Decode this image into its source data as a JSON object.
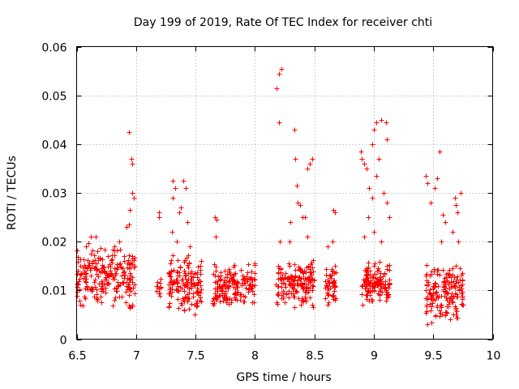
{
  "chart_data": {
    "type": "scatter",
    "title": "Day 199 of 2019, Rate Of TEC Index for receiver chti",
    "xlabel": "GPS time / hours",
    "ylabel": "ROTI / TECUs",
    "xlim": [
      6.5,
      10
    ],
    "ylim": [
      0,
      0.06
    ],
    "xticks": [
      6.5,
      7,
      7.5,
      8,
      8.5,
      9,
      9.5,
      10
    ],
    "xtick_labels": [
      "6.5",
      "7",
      "7.5",
      "8",
      "8.5",
      "9",
      "9.5",
      "10"
    ],
    "yticks": [
      0,
      0.01,
      0.02,
      0.03,
      0.04,
      0.05,
      0.06
    ],
    "ytick_labels": [
      "0",
      "0.01",
      "0.02",
      "0.03",
      "0.04",
      "0.05",
      "0.06"
    ],
    "grid": true,
    "marker": "plus",
    "series": [
      {
        "name": "ROTI",
        "color": "#ff0000",
        "clusters": [
          {
            "x_start": 6.5,
            "x_end": 6.99,
            "n": 230,
            "y_min": 0.006,
            "y_max": 0.02
          },
          {
            "x_start": 7.17,
            "x_end": 7.21,
            "n": 12,
            "y_min": 0.008,
            "y_max": 0.013
          },
          {
            "x_start": 7.27,
            "x_end": 7.55,
            "n": 150,
            "y_min": 0.005,
            "y_max": 0.018
          },
          {
            "x_start": 7.64,
            "x_end": 8.0,
            "n": 170,
            "y_min": 0.006,
            "y_max": 0.016
          },
          {
            "x_start": 8.17,
            "x_end": 8.5,
            "n": 170,
            "y_min": 0.006,
            "y_max": 0.017
          },
          {
            "x_start": 8.59,
            "x_end": 8.68,
            "n": 50,
            "y_min": 0.006,
            "y_max": 0.016
          },
          {
            "x_start": 8.89,
            "x_end": 9.14,
            "n": 140,
            "y_min": 0.007,
            "y_max": 0.016
          },
          {
            "x_start": 9.43,
            "x_end": 9.75,
            "n": 170,
            "y_min": 0.003,
            "y_max": 0.016
          }
        ],
        "outliers": [
          {
            "x": 6.58,
            "y": 0.019
          },
          {
            "x": 6.62,
            "y": 0.021
          },
          {
            "x": 6.66,
            "y": 0.021
          },
          {
            "x": 6.82,
            "y": 0.019
          },
          {
            "x": 6.86,
            "y": 0.02
          },
          {
            "x": 6.92,
            "y": 0.023
          },
          {
            "x": 6.94,
            "y": 0.0235
          },
          {
            "x": 6.95,
            "y": 0.0265
          },
          {
            "x": 6.94,
            "y": 0.0425
          },
          {
            "x": 6.96,
            "y": 0.037
          },
          {
            "x": 6.97,
            "y": 0.036
          },
          {
            "x": 6.97,
            "y": 0.03
          },
          {
            "x": 6.98,
            "y": 0.029
          },
          {
            "x": 7.19,
            "y": 0.026
          },
          {
            "x": 7.19,
            "y": 0.025
          },
          {
            "x": 7.3,
            "y": 0.022
          },
          {
            "x": 7.31,
            "y": 0.029
          },
          {
            "x": 7.31,
            "y": 0.0325
          },
          {
            "x": 7.33,
            "y": 0.031
          },
          {
            "x": 7.36,
            "y": 0.026
          },
          {
            "x": 7.38,
            "y": 0.027
          },
          {
            "x": 7.4,
            "y": 0.0325
          },
          {
            "x": 7.42,
            "y": 0.031
          },
          {
            "x": 7.43,
            "y": 0.024
          },
          {
            "x": 7.34,
            "y": 0.02
          },
          {
            "x": 7.45,
            "y": 0.019
          },
          {
            "x": 7.66,
            "y": 0.025
          },
          {
            "x": 7.68,
            "y": 0.0245
          },
          {
            "x": 7.67,
            "y": 0.021
          },
          {
            "x": 8.18,
            "y": 0.0515
          },
          {
            "x": 8.2,
            "y": 0.0545
          },
          {
            "x": 8.22,
            "y": 0.0555
          },
          {
            "x": 8.2,
            "y": 0.0445
          },
          {
            "x": 8.33,
            "y": 0.043
          },
          {
            "x": 8.34,
            "y": 0.037
          },
          {
            "x": 8.35,
            "y": 0.0315
          },
          {
            "x": 8.36,
            "y": 0.028
          },
          {
            "x": 8.38,
            "y": 0.0275
          },
          {
            "x": 8.44,
            "y": 0.035
          },
          {
            "x": 8.46,
            "y": 0.036
          },
          {
            "x": 8.48,
            "y": 0.037
          },
          {
            "x": 8.4,
            "y": 0.025
          },
          {
            "x": 8.42,
            "y": 0.025
          },
          {
            "x": 8.3,
            "y": 0.024
          },
          {
            "x": 8.44,
            "y": 0.021
          },
          {
            "x": 8.21,
            "y": 0.02
          },
          {
            "x": 8.29,
            "y": 0.02
          },
          {
            "x": 8.66,
            "y": 0.0265
          },
          {
            "x": 8.67,
            "y": 0.026
          },
          {
            "x": 8.61,
            "y": 0.019
          },
          {
            "x": 8.65,
            "y": 0.02
          },
          {
            "x": 8.89,
            "y": 0.0385
          },
          {
            "x": 8.9,
            "y": 0.037
          },
          {
            "x": 8.92,
            "y": 0.036
          },
          {
            "x": 8.94,
            "y": 0.035
          },
          {
            "x": 8.99,
            "y": 0.04
          },
          {
            "x": 9.0,
            "y": 0.043
          },
          {
            "x": 9.02,
            "y": 0.0445
          },
          {
            "x": 9.06,
            "y": 0.045
          },
          {
            "x": 9.1,
            "y": 0.0445
          },
          {
            "x": 9.11,
            "y": 0.041
          },
          {
            "x": 9.04,
            "y": 0.037
          },
          {
            "x": 9.02,
            "y": 0.0335
          },
          {
            "x": 8.96,
            "y": 0.031
          },
          {
            "x": 8.99,
            "y": 0.029
          },
          {
            "x": 9.08,
            "y": 0.03
          },
          {
            "x": 9.11,
            "y": 0.028
          },
          {
            "x": 9.13,
            "y": 0.025
          },
          {
            "x": 8.95,
            "y": 0.025
          },
          {
            "x": 9.0,
            "y": 0.022
          },
          {
            "x": 9.06,
            "y": 0.02
          },
          {
            "x": 8.92,
            "y": 0.021
          },
          {
            "x": 9.44,
            "y": 0.0335
          },
          {
            "x": 9.45,
            "y": 0.032
          },
          {
            "x": 9.53,
            "y": 0.033
          },
          {
            "x": 9.55,
            "y": 0.0385
          },
          {
            "x": 9.51,
            "y": 0.031
          },
          {
            "x": 9.48,
            "y": 0.028
          },
          {
            "x": 9.58,
            "y": 0.0255
          },
          {
            "x": 9.6,
            "y": 0.024
          },
          {
            "x": 9.68,
            "y": 0.029
          },
          {
            "x": 9.69,
            "y": 0.0275
          },
          {
            "x": 9.7,
            "y": 0.026
          },
          {
            "x": 9.73,
            "y": 0.03
          },
          {
            "x": 9.66,
            "y": 0.022
          },
          {
            "x": 9.57,
            "y": 0.02
          },
          {
            "x": 9.71,
            "y": 0.02
          }
        ]
      }
    ]
  }
}
